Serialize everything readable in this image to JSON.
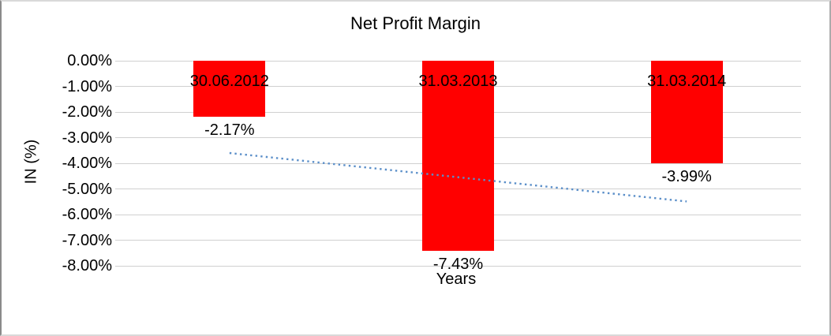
{
  "chart_data": {
    "type": "bar",
    "title": "Net Profit Margin",
    "categories": [
      "30.06.2012",
      "31.03.2013",
      "31.03.2014"
    ],
    "values": [
      -2.17,
      -7.43,
      -3.99
    ],
    "value_labels": [
      "-2.17%",
      "-7.43%",
      "-3.99%"
    ],
    "xlabel": "Years",
    "ylabel": "IN (%)",
    "ylim": [
      -8,
      0
    ],
    "ytick_step": 1,
    "ytick_labels": [
      "0.00%",
      "-1.00%",
      "-2.00%",
      "-3.00%",
      "-4.00%",
      "-5.00%",
      "-6.00%",
      "-7.00%",
      "-8.00%"
    ],
    "grid": true,
    "legend": "none",
    "bar_color": "#FF0000",
    "gridline_color": "#D0D0D0",
    "text_color": "#000000",
    "trendline": {
      "type": "linear",
      "style": "dotted",
      "color": "#5B8FC9",
      "start_value": -3.6,
      "end_value": -5.49
    }
  }
}
